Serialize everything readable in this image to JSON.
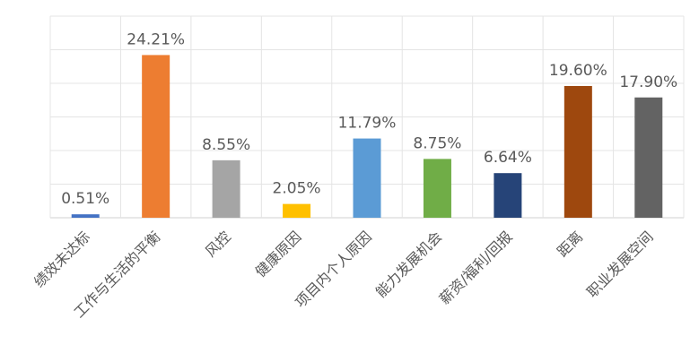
{
  "chart_data": {
    "type": "bar",
    "title": "",
    "xlabel": "",
    "ylabel": "",
    "ylim": [
      0,
      30
    ],
    "grid": true,
    "legend": "none",
    "categories": [
      "绩效未达标",
      "工作与生活的平衡",
      "风控",
      "健康原因",
      "项目内个人原因",
      "能力发展机会",
      "薪资/福利/回报",
      "距离",
      "职业发展空间"
    ],
    "values": [
      0.51,
      24.21,
      8.55,
      2.05,
      11.79,
      8.75,
      6.64,
      19.6,
      17.9
    ],
    "data_labels": [
      "0.51%",
      "24.21%",
      "8.55%",
      "2.05%",
      "11.79%",
      "8.75%",
      "6.64%",
      "19.60%",
      "17.90%"
    ],
    "colors": [
      "#4472C4",
      "#ED7D31",
      "#A5A5A5",
      "#FFC000",
      "#5B9BD5",
      "#70AD47",
      "#264478",
      "#9E480E",
      "#636363"
    ]
  }
}
